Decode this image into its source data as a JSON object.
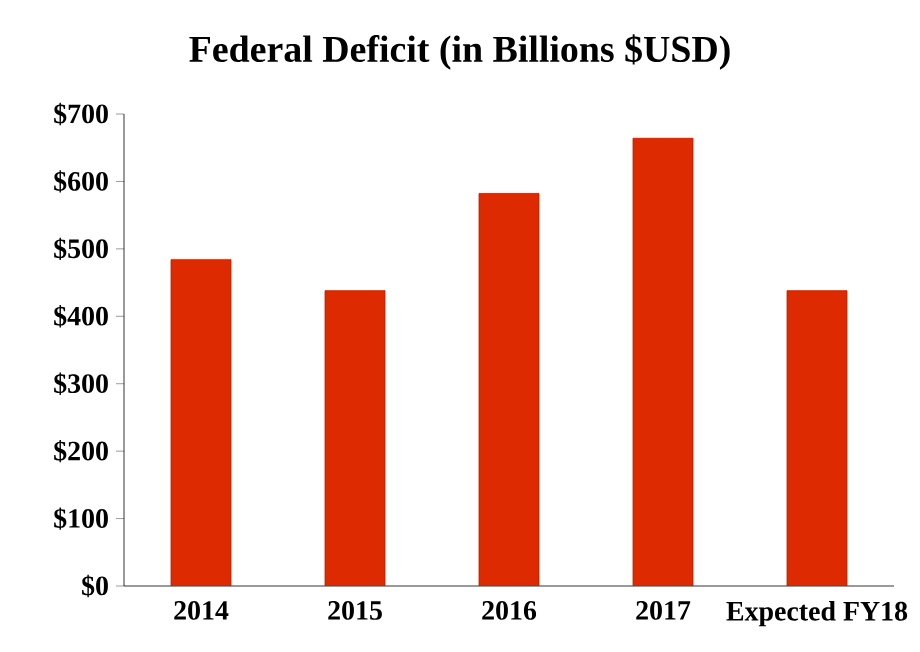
{
  "chart_data": {
    "type": "bar",
    "title": "Federal Deficit (in Billions $USD)",
    "categories": [
      "2014",
      "2015",
      "2016",
      "2017",
      "Expected FY18"
    ],
    "values": [
      484,
      438,
      582,
      664,
      438
    ],
    "color": "#dd2a00",
    "ylim": [
      0,
      700
    ],
    "yticks": [
      {
        "value": 0,
        "label": "$0"
      },
      {
        "value": 100,
        "label": "$100"
      },
      {
        "value": 200,
        "label": "$200"
      },
      {
        "value": 300,
        "label": "$300"
      },
      {
        "value": 400,
        "label": "$400"
      },
      {
        "value": 500,
        "label": "$500"
      },
      {
        "value": 600,
        "label": "$600"
      },
      {
        "value": 700,
        "label": "$700"
      }
    ],
    "grid": false
  }
}
